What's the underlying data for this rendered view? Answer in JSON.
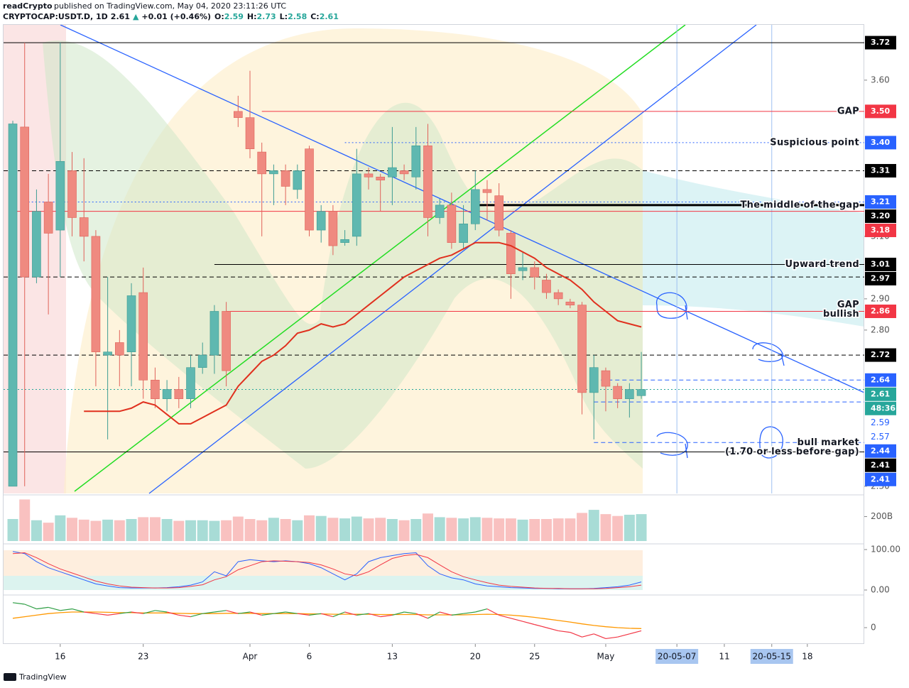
{
  "header": {
    "author": "readCrypto",
    "published": "published on TradingView.com, May 04, 2020 23:11:26 UTC",
    "quote_items": [
      {
        "text": "CRYPTOCAP:USDT.D, 1D",
        "color": "#131722"
      },
      {
        "text": "2.61",
        "color": "#131722"
      },
      {
        "text": "▲",
        "color": "#26a69a"
      },
      {
        "text": "+0.01 (+0.46%)",
        "color": "#131722"
      },
      {
        "text": "O:",
        "color": "#131722"
      },
      {
        "text": "2.59",
        "color": "#26a69a"
      },
      {
        "text": "H:",
        "color": "#131722"
      },
      {
        "text": "2.73",
        "color": "#26a69a"
      },
      {
        "text": "L:",
        "color": "#131722"
      },
      {
        "text": "2.58",
        "color": "#26a69a"
      },
      {
        "text": "C:",
        "color": "#131722"
      },
      {
        "text": "2.61",
        "color": "#26a69a"
      }
    ]
  },
  "footer": {
    "brand": "TradingView"
  },
  "chart_data": {
    "type": "candlestick",
    "up_color": "#5fb8b0",
    "down_color": "#ef8a80",
    "x": [
      0,
      1,
      2,
      3,
      4,
      5,
      6,
      7,
      8,
      9,
      10,
      11,
      12,
      13,
      14,
      15,
      16,
      17,
      18,
      19,
      20,
      21,
      22,
      23,
      24,
      25,
      26,
      27,
      28,
      29,
      30,
      31,
      32,
      33,
      34,
      35,
      36,
      37,
      38,
      39,
      40,
      41,
      42,
      43,
      44,
      45,
      46,
      47,
      48,
      49,
      50,
      51,
      52,
      53
    ],
    "open": [
      2.3,
      3.45,
      2.97,
      3.21,
      3.12,
      3.31,
      3.16,
      3.1,
      2.72,
      2.76,
      2.73,
      2.92,
      2.64,
      2.58,
      2.61,
      2.58,
      2.68,
      2.72,
      2.86,
      3.5,
      3.48,
      3.37,
      3.3,
      3.31,
      3.25,
      3.38,
      3.12,
      3.18,
      3.08,
      3.1,
      3.3,
      3.29,
      3.29,
      3.31,
      3.29,
      3.39,
      3.16,
      3.2,
      3.08,
      3.14,
      3.25,
      3.23,
      3.11,
      2.99,
      3.0,
      2.96,
      2.92,
      2.89,
      2.88,
      2.6,
      2.67,
      2.62,
      2.58,
      2.59
    ],
    "high": [
      3.47,
      3.72,
      3.25,
      3.3,
      3.72,
      3.37,
      3.35,
      3.12,
      2.97,
      2.8,
      2.95,
      3.0,
      2.68,
      2.64,
      2.65,
      2.72,
      2.76,
      2.88,
      2.89,
      3.55,
      3.63,
      3.4,
      3.33,
      3.33,
      3.33,
      3.39,
      3.2,
      3.2,
      3.12,
      3.38,
      3.32,
      3.3,
      3.45,
      3.33,
      3.45,
      3.46,
      3.22,
      3.24,
      3.2,
      3.31,
      3.28,
      3.27,
      3.12,
      3.05,
      3.02,
      2.98,
      2.93,
      2.9,
      2.89,
      2.72,
      2.68,
      2.63,
      2.63,
      2.73
    ],
    "low": [
      2.3,
      2.3,
      2.95,
      2.85,
      2.97,
      3.1,
      3.02,
      2.62,
      2.45,
      2.62,
      2.62,
      2.58,
      2.55,
      2.54,
      2.55,
      2.55,
      2.66,
      2.66,
      2.62,
      3.45,
      3.35,
      3.1,
      3.2,
      3.2,
      3.22,
      3.1,
      3.08,
      3.04,
      3.07,
      3.07,
      3.25,
      3.18,
      3.2,
      3.28,
      3.25,
      3.1,
      3.14,
      3.06,
      3.06,
      3.12,
      3.15,
      3.1,
      2.9,
      2.96,
      2.93,
      2.9,
      2.88,
      2.87,
      2.53,
      2.45,
      2.54,
      2.55,
      2.52,
      2.58
    ],
    "close": [
      3.46,
      2.97,
      3.18,
      3.11,
      3.34,
      3.16,
      3.1,
      2.73,
      2.73,
      2.72,
      2.91,
      2.64,
      2.58,
      2.61,
      2.58,
      2.68,
      2.72,
      2.86,
      2.67,
      3.48,
      3.38,
      3.3,
      3.31,
      3.26,
      3.31,
      3.12,
      3.18,
      3.07,
      3.09,
      3.3,
      3.29,
      3.28,
      3.32,
      3.3,
      3.39,
      3.16,
      3.2,
      3.08,
      3.14,
      3.25,
      3.24,
      3.12,
      2.98,
      3.0,
      2.97,
      2.92,
      2.9,
      2.88,
      2.6,
      2.68,
      2.62,
      2.58,
      2.61,
      2.61
    ],
    "ma": {
      "color": "#e0301e",
      "values": [
        null,
        null,
        null,
        null,
        null,
        null,
        2.54,
        2.54,
        2.54,
        2.54,
        2.55,
        2.57,
        2.56,
        2.53,
        2.5,
        2.5,
        2.52,
        2.54,
        2.56,
        2.62,
        2.66,
        2.7,
        2.72,
        2.75,
        2.79,
        2.8,
        2.82,
        2.81,
        2.82,
        2.85,
        2.88,
        2.91,
        2.94,
        2.97,
        2.99,
        3.01,
        3.03,
        3.04,
        3.06,
        3.08,
        3.08,
        3.08,
        3.07,
        3.05,
        3.03,
        3.0,
        2.98,
        2.96,
        2.93,
        2.89,
        2.86,
        2.83,
        2.82,
        2.81
      ]
    },
    "xlim": [
      -0.78,
      71.8
    ],
    "xticks": [
      {
        "value": 4,
        "label": "16"
      },
      {
        "value": 11,
        "label": "23"
      },
      {
        "value": 20,
        "label": "Apr"
      },
      {
        "value": 25,
        "label": "6"
      },
      {
        "value": 32,
        "label": "13"
      },
      {
        "value": 39,
        "label": "20"
      },
      {
        "value": 44,
        "label": "25"
      },
      {
        "value": 50,
        "label": "May"
      },
      {
        "value": 56,
        "label": "20-05-07",
        "highlight": true
      },
      {
        "value": 60,
        "label": "11"
      },
      {
        "value": 64,
        "label": "20-05-15",
        "highlight": true
      },
      {
        "value": 67,
        "label": "18"
      }
    ],
    "ylim": [
      2.277,
      3.777
    ],
    "yticks": [
      {
        "value": 3.6,
        "label": "3.60"
      },
      {
        "value": 3.1,
        "label": "3.10"
      },
      {
        "value": 2.9,
        "label": "2.90"
      },
      {
        "value": 2.8,
        "label": "2.80"
      },
      {
        "value": 2.3,
        "label": "2.30"
      }
    ],
    "grid": false,
    "levels": [
      {
        "value": 3.72,
        "color": "#000000",
        "style": "solid",
        "from": -0.78
      },
      {
        "value": 3.5,
        "label": "3.50",
        "color": "#f23645",
        "style": "solid",
        "from": 21,
        "note": "GAP"
      },
      {
        "value": 3.4,
        "label": "3.40",
        "color": "#2962ff",
        "style": "dotted",
        "from": 28,
        "note": "Suspicious point"
      },
      {
        "value": 3.31,
        "color": "#000000",
        "style": "dashed",
        "from": -0.78
      },
      {
        "value": 3.21,
        "color": "#2962ff",
        "style": "dotted",
        "from": 1
      },
      {
        "value": 3.2,
        "label": "3.20",
        "color": "#000000",
        "style": "thick",
        "from": 39,
        "note": "The middle of the gap"
      },
      {
        "value": 3.18,
        "color": "#f23645",
        "style": "solid",
        "from": 0
      },
      {
        "value": 3.01,
        "color": "#000000",
        "style": "solid",
        "from": 17,
        "note": "Upward trend"
      },
      {
        "value": 2.97,
        "color": "#000000",
        "style": "dashed",
        "from": -0.78
      },
      {
        "value": 2.86,
        "color": "#f23645",
        "style": "solid",
        "from": 18,
        "note": "GAP",
        "note2": "bullish"
      },
      {
        "value": 2.72,
        "color": "#000000",
        "style": "dashed",
        "from": -0.78
      },
      {
        "value": 2.64,
        "color": "#2962ff",
        "style": "dashed",
        "from": 49
      },
      {
        "value": 2.61,
        "color": "#26a69a",
        "style": "dotted",
        "from": -0.78,
        "countdown": "48:36"
      },
      {
        "value": 2.59,
        "color": "#2962ff",
        "style": "none",
        "box": false
      },
      {
        "value": 2.57,
        "color": "#2962ff",
        "style": "dashed",
        "from": 49,
        "box": false
      },
      {
        "value": 2.44,
        "color": "#2962ff",
        "style": "dashed",
        "from": 49,
        "note": "bull market"
      },
      {
        "value": 2.41,
        "color": "#000000",
        "style": "solid",
        "from": -0.78,
        "note": "(1.70 or less before gap)"
      },
      {
        "value": 2.41,
        "color": "#2962ff",
        "style": "none"
      }
    ],
    "volume": {
      "values": [
        180,
        340,
        170,
        150,
        210,
        190,
        175,
        165,
        175,
        170,
        180,
        195,
        195,
        180,
        165,
        170,
        170,
        165,
        170,
        200,
        180,
        170,
        190,
        180,
        170,
        210,
        205,
        190,
        185,
        200,
        185,
        190,
        180,
        170,
        180,
        225,
        195,
        190,
        185,
        195,
        190,
        185,
        185,
        175,
        180,
        180,
        185,
        185,
        230,
        255,
        220,
        205,
        215,
        220
      ],
      "ylim": [
        0,
        360
      ],
      "yticks": [
        {
          "value": 200,
          "label": "200B"
        }
      ],
      "up_color": "#a8dcd6",
      "down_color": "#f9c1c0"
    },
    "stochastic": {
      "ylim": [
        -8.8,
        107
      ],
      "yticks": [
        {
          "value": 100,
          "label": "100.00"
        },
        {
          "value": 0,
          "label": "0.00"
        }
      ],
      "series": [
        {
          "color": "#2962ff",
          "values": [
            95,
            90,
            70,
            55,
            45,
            35,
            25,
            15,
            10,
            6,
            5,
            5,
            5,
            6,
            8,
            12,
            20,
            45,
            35,
            70,
            75,
            72,
            70,
            72,
            70,
            65,
            55,
            40,
            25,
            40,
            70,
            80,
            85,
            90,
            92,
            60,
            40,
            30,
            25,
            15,
            10,
            8,
            6,
            5,
            4,
            4,
            3,
            3,
            3,
            4,
            6,
            8,
            12,
            20
          ]
        },
        {
          "color": "#f23645",
          "values": [
            90,
            92,
            80,
            65,
            52,
            42,
            32,
            22,
            15,
            10,
            7,
            6,
            5,
            5,
            6,
            9,
            13,
            25,
            33,
            50,
            60,
            70,
            72,
            71,
            70,
            68,
            62,
            52,
            40,
            35,
            45,
            62,
            78,
            85,
            88,
            80,
            62,
            45,
            33,
            25,
            18,
            12,
            9,
            7,
            5,
            4,
            4,
            3,
            3,
            3,
            4,
            6,
            8,
            12
          ]
        }
      ]
    },
    "momentum": {
      "ylim": [
        -0.477,
        1
      ],
      "yticks": [
        0
      ],
      "above_color": "#2e9e44",
      "below_color": "#f23645",
      "signal_color": "#ff9800",
      "values": [
        0.8,
        0.75,
        0.6,
        0.65,
        0.55,
        0.6,
        0.5,
        0.45,
        0.4,
        0.45,
        0.5,
        0.45,
        0.55,
        0.5,
        0.4,
        0.35,
        0.45,
        0.5,
        0.55,
        0.45,
        0.5,
        0.4,
        0.45,
        0.5,
        0.45,
        0.4,
        0.45,
        0.35,
        0.5,
        0.4,
        0.45,
        0.35,
        0.4,
        0.5,
        0.45,
        0.3,
        0.5,
        0.4,
        0.45,
        0.5,
        0.6,
        0.4,
        0.3,
        0.2,
        0.1,
        0,
        -0.1,
        -0.15,
        -0.3,
        -0.2,
        -0.35,
        -0.3,
        -0.2,
        -0.1
      ],
      "signal": [
        0.3,
        0.35,
        0.4,
        0.45,
        0.48,
        0.5,
        0.5,
        0.5,
        0.49,
        0.48,
        0.48,
        0.47,
        0.47,
        0.47,
        0.46,
        0.45,
        0.45,
        0.45,
        0.46,
        0.46,
        0.46,
        0.45,
        0.45,
        0.45,
        0.45,
        0.44,
        0.44,
        0.43,
        0.43,
        0.43,
        0.43,
        0.42,
        0.42,
        0.42,
        0.42,
        0.41,
        0.41,
        0.41,
        0.41,
        0.42,
        0.43,
        0.42,
        0.4,
        0.37,
        0.33,
        0.28,
        0.23,
        0.18,
        0.12,
        0.07,
        0.03,
        0,
        -0.02,
        -0.03
      ]
    }
  }
}
